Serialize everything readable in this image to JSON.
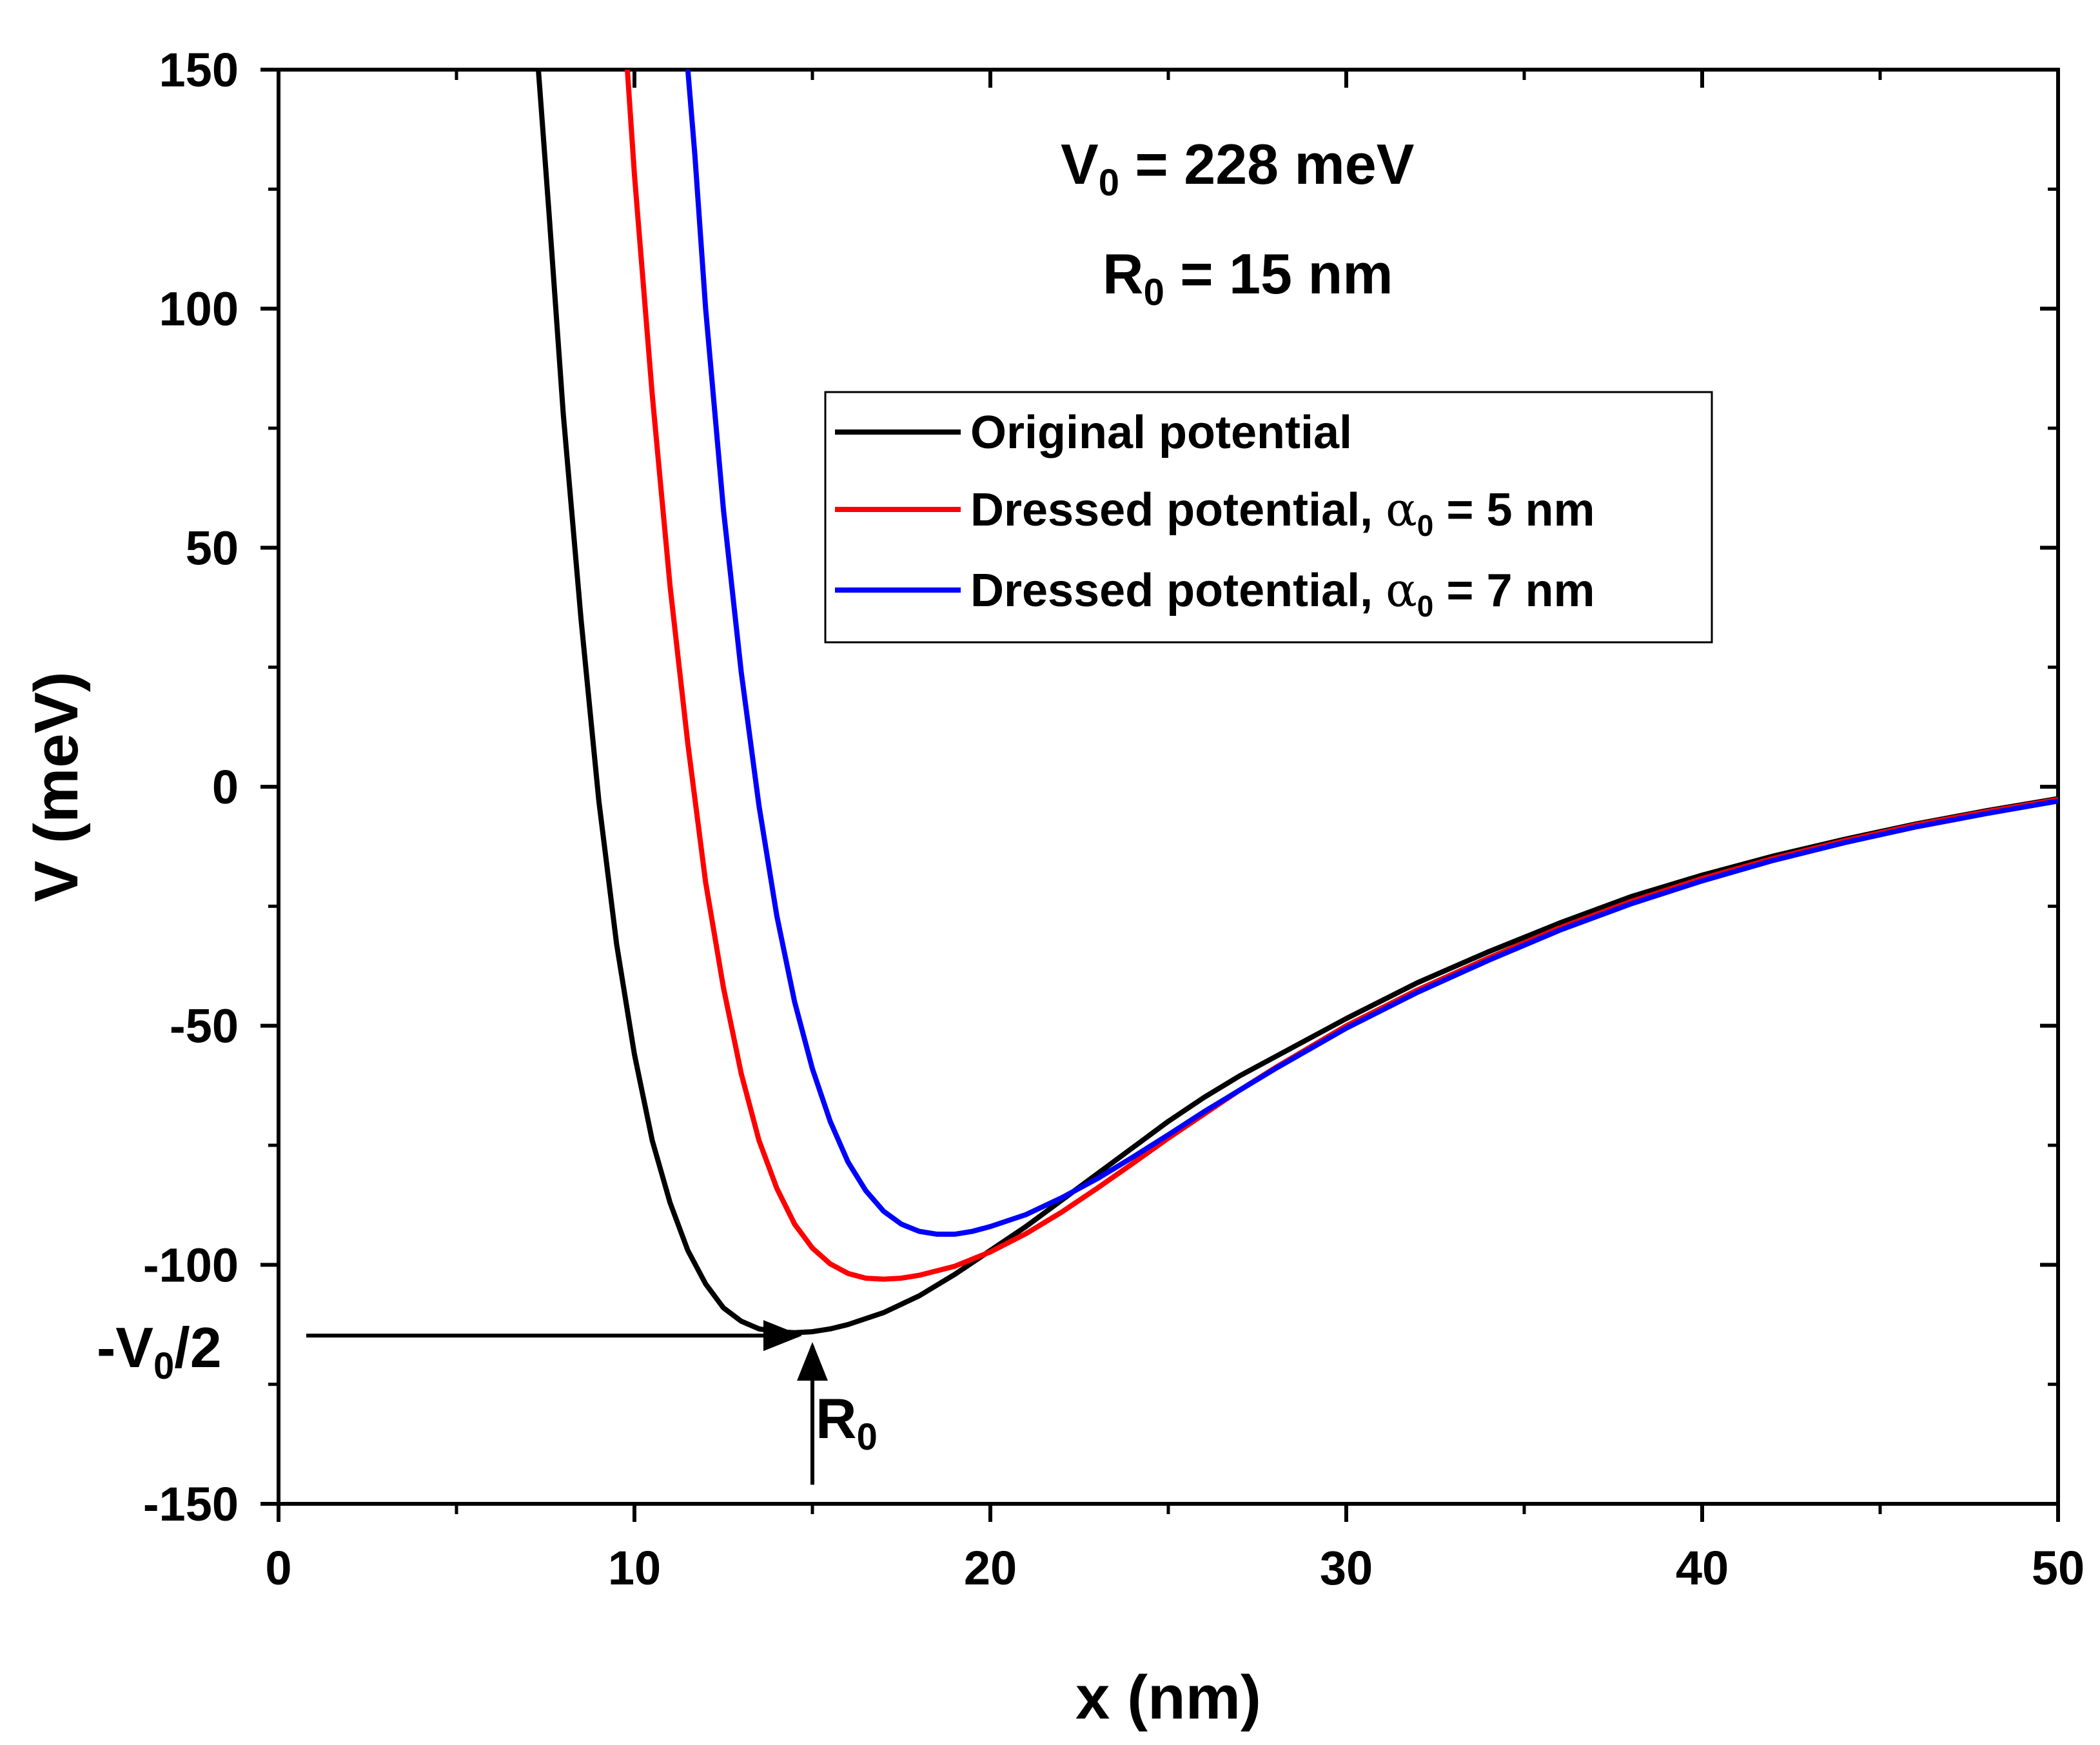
{
  "chart_data": {
    "type": "line",
    "title": "",
    "xlabel": "x (nm)",
    "ylabel": "V (meV)",
    "xlim": [
      0,
      50
    ],
    "ylim": [
      -150,
      150
    ],
    "xticks": [
      0,
      10,
      20,
      30,
      40,
      50
    ],
    "yticks": [
      150,
      100,
      50,
      0,
      -50,
      -100,
      -150
    ],
    "xtick_labels": [
      "0",
      "10",
      "20",
      "30",
      "40",
      "50"
    ],
    "ytick_labels": [
      "150",
      "100",
      "50",
      "0",
      "-50",
      "-100",
      "-150"
    ],
    "grid": false,
    "legend_position": "upper-right",
    "legend": [
      {
        "label": "Original potential",
        "color": "#000000"
      },
      {
        "label_main": "Dressed potential, ",
        "symbol": "α",
        "sub": "0",
        "label_tail": " = 5 nm",
        "color": "#ff0000"
      },
      {
        "label_main": "Dressed potential, ",
        "symbol": "α",
        "sub": "0",
        "label_tail": " = 7 nm",
        "color": "#0000ff"
      }
    ],
    "annotations": {
      "v0_text": {
        "main": "V",
        "sub": "0",
        "tail": " = 228 meV"
      },
      "r0_text": {
        "main": "R",
        "sub": "0",
        "tail": " = 15 nm"
      },
      "minus_v0_half": {
        "main": "-V",
        "sub": "0",
        "tail": "/2",
        "value": -114
      },
      "r0_marker": {
        "main": "R",
        "sub": "0",
        "value": 15
      }
    },
    "series": [
      {
        "name": "Original potential",
        "color": "#000000",
        "x": [
          7.3,
          7.6,
          8.0,
          8.5,
          9.0,
          9.5,
          10.0,
          10.5,
          11.0,
          11.5,
          12.0,
          12.5,
          13.0,
          13.5,
          14.0,
          14.5,
          15.0,
          15.5,
          16.0,
          17.0,
          18.0,
          19.0,
          20.0,
          21.0,
          22.0,
          23.0,
          24.0,
          25.0,
          26.0,
          27.0,
          28.0,
          30.0,
          32.0,
          34.0,
          36.0,
          38.0,
          40.0,
          42.0,
          44.0,
          46.0,
          48.0,
          50.0
        ],
        "y": [
          150,
          120,
          78,
          35,
          -3,
          -33,
          -56,
          -74,
          -87,
          -97,
          -104,
          -109,
          -111.8,
          -113.4,
          -114.0,
          -114.2,
          -114.0,
          -113.4,
          -112.5,
          -110.0,
          -106.5,
          -102.0,
          -97.0,
          -92.0,
          -86.5,
          -81.0,
          -75.5,
          -70.0,
          -65.0,
          -60.5,
          -56.5,
          -48.5,
          -41.0,
          -34.5,
          -28.5,
          -23.0,
          -18.5,
          -14.5,
          -11.0,
          -7.8,
          -5.0,
          -2.5
        ]
      },
      {
        "name": "Dressed potential, α0 = 5 nm",
        "color": "#ff0000",
        "x": [
          9.8,
          10.0,
          10.5,
          11.0,
          11.5,
          12.0,
          12.5,
          13.0,
          13.5,
          14.0,
          14.5,
          15.0,
          15.5,
          16.0,
          16.5,
          17.0,
          17.5,
          18.0,
          19.0,
          20.0,
          21.0,
          22.0,
          23.0,
          24.0,
          25.0,
          26.0,
          27.0,
          28.0,
          30.0,
          32.0,
          34.0,
          36.0,
          38.0,
          40.0,
          42.0,
          44.0,
          46.0,
          48.0,
          50.0
        ],
        "y": [
          150,
          128,
          82,
          42,
          9,
          -20,
          -42,
          -60,
          -74,
          -84,
          -91.5,
          -96.5,
          -99.8,
          -101.8,
          -102.8,
          -103.0,
          -102.8,
          -102.2,
          -100.3,
          -97.3,
          -93.5,
          -89.0,
          -84.0,
          -78.8,
          -73.5,
          -68.5,
          -63.5,
          -58.8,
          -50.0,
          -42.5,
          -35.8,
          -29.5,
          -24.0,
          -19.2,
          -15.0,
          -11.3,
          -8.0,
          -5.2,
          -2.7
        ]
      },
      {
        "name": "Dressed potential, α0 = 7 nm",
        "color": "#0000ff",
        "x": [
          11.5,
          11.7,
          12.0,
          12.5,
          13.0,
          13.5,
          14.0,
          14.5,
          15.0,
          15.5,
          16.0,
          16.5,
          17.0,
          17.5,
          18.0,
          18.5,
          19.0,
          19.5,
          20.0,
          21.0,
          22.0,
          23.0,
          24.0,
          25.0,
          26.0,
          27.0,
          28.0,
          30.0,
          32.0,
          34.0,
          36.0,
          38.0,
          40.0,
          42.0,
          44.0,
          46.0,
          48.0,
          50.0
        ],
        "y": [
          150,
          132,
          100,
          58,
          24,
          -4,
          -27,
          -45,
          -59,
          -70,
          -78.5,
          -84.5,
          -88.8,
          -91.5,
          -93.0,
          -93.6,
          -93.6,
          -93.0,
          -92.0,
          -89.5,
          -86.0,
          -82.0,
          -77.5,
          -72.8,
          -68.0,
          -63.5,
          -59.0,
          -50.5,
          -43.0,
          -36.3,
          -30.0,
          -24.5,
          -19.7,
          -15.4,
          -11.7,
          -8.4,
          -5.6,
          -3.0
        ]
      }
    ]
  }
}
